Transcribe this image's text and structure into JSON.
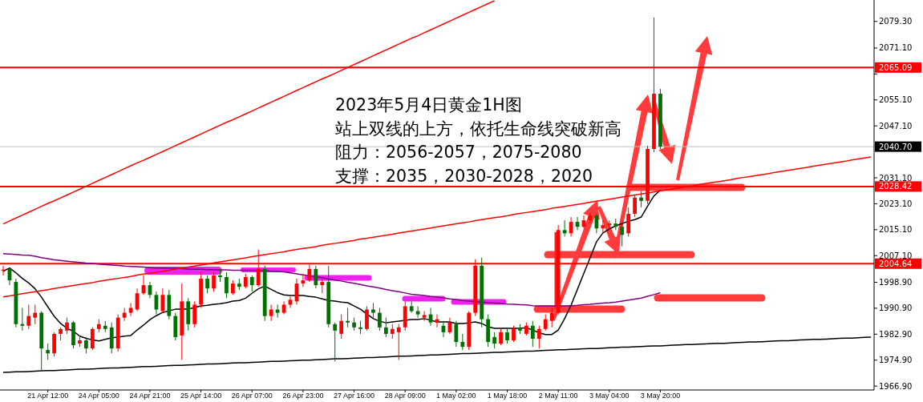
{
  "chart_data": {
    "type": "candlestick",
    "annotations": [
      "2023年5月4日黄金1H图",
      "站上双线的上方，依托生命线突破新高",
      "阻力：2056-2057，2075-2080",
      "支撑：2035，2030-2028，2020"
    ],
    "categories": [
      null,
      null,
      null,
      null,
      null,
      null,
      null,
      "21 Apr 12:00",
      null,
      null,
      null,
      null,
      null,
      null,
      null,
      "24 Apr 05:00",
      null,
      null,
      null,
      null,
      null,
      null,
      null,
      "24 Apr 21:00",
      null,
      null,
      null,
      null,
      null,
      null,
      null,
      "25 Apr 14:00",
      null,
      null,
      null,
      null,
      null,
      null,
      null,
      "26 Apr 07:00",
      null,
      null,
      null,
      null,
      null,
      null,
      null,
      "26 Apr 23:00",
      null,
      null,
      null,
      null,
      null,
      null,
      null,
      "27 Apr 16:00",
      null,
      null,
      null,
      null,
      null,
      null,
      null,
      "28 Apr 09:00",
      null,
      null,
      null,
      null,
      null,
      null,
      null,
      "1 May 02:00",
      null,
      null,
      null,
      null,
      null,
      null,
      null,
      "1 May 18:00",
      null,
      null,
      null,
      null,
      null,
      null,
      null,
      "2 May 11:00",
      null,
      null,
      null,
      null,
      null,
      null,
      null,
      "3 May 04:00",
      null,
      null,
      null,
      null,
      null,
      null,
      null,
      "3 May 20:00",
      null,
      null,
      null,
      null,
      null,
      null,
      null,
      null,
      null,
      null,
      null,
      null,
      null,
      null,
      null,
      null,
      null,
      null,
      null,
      null,
      null,
      null,
      null,
      null,
      null,
      null,
      null,
      null,
      null,
      null,
      null,
      null,
      null
    ],
    "ohlc": [
      [
        2002.5,
        2004.0,
        2001.0,
        2002.8
      ],
      [
        2003.0,
        2003.5,
        1998.0,
        1999.5
      ],
      [
        1999.0,
        2000.0,
        1985.0,
        1986.0
      ],
      [
        1986.0,
        1991.0,
        1984.0,
        1985.5
      ],
      [
        1985.5,
        1992.0,
        1984.5,
        1988.5
      ],
      [
        1988.0,
        1992.0,
        1986.0,
        1989.5
      ],
      [
        1989.5,
        1990.0,
        1971.5,
        1978.5
      ],
      [
        1978.0,
        1980.0,
        1975.0,
        1977.0
      ],
      [
        1977.0,
        1983.5,
        1976.0,
        1983.0
      ],
      [
        1983.0,
        1985.0,
        1981.0,
        1984.5
      ],
      [
        1984.0,
        1988.0,
        1983.0,
        1986.5
      ],
      [
        1986.5,
        1987.0,
        1978.5,
        1979.5
      ],
      [
        1980.0,
        1982.0,
        1979.0,
        1981.0
      ],
      [
        1981.0,
        1982.0,
        1977.0,
        1978.5
      ],
      [
        1978.5,
        1985.0,
        1978.0,
        1984.5
      ],
      [
        1984.5,
        1987.5,
        1983.5,
        1986.0
      ],
      [
        1985.5,
        1987.0,
        1983.5,
        1984.5
      ],
      [
        1985.0,
        1986.5,
        1977.0,
        1978.5
      ],
      [
        1978.5,
        1989.0,
        1977.5,
        1988.0
      ],
      [
        1988.0,
        1991.0,
        1987.0,
        1989.5
      ],
      [
        1989.5,
        1992.5,
        1988.5,
        1991.0
      ],
      [
        1990.5,
        1997.0,
        1990.0,
        1995.5
      ],
      [
        1995.5,
        2001.0,
        1995.0,
        1998.0
      ],
      [
        1998.0,
        1999.0,
        1994.0,
        1995.0
      ],
      [
        1995.0,
        1996.0,
        1989.0,
        1990.5
      ],
      [
        1990.0,
        1997.0,
        1989.5,
        1995.0
      ],
      [
        1995.0,
        1996.5,
        1987.5,
        1988.5
      ],
      [
        1988.5,
        1989.5,
        1981.0,
        1982.0
      ],
      [
        1982.5,
        1998.5,
        1975.0,
        1993.0
      ],
      [
        1993.0,
        1994.0,
        1984.0,
        1986.0
      ],
      [
        1986.0,
        1993.0,
        1985.0,
        1992.0
      ],
      [
        1992.0,
        2002.0,
        1991.0,
        2000.0
      ],
      [
        2000.0,
        2001.0,
        1995.5,
        1997.0
      ],
      [
        1997.0,
        2002.0,
        1996.0,
        2001.0
      ],
      [
        2001.0,
        2003.0,
        1999.0,
        2000.5
      ],
      [
        2000.5,
        2002.0,
        1994.0,
        1995.5
      ],
      [
        1995.5,
        1999.5,
        1995.0,
        1998.5
      ],
      [
        1998.5,
        2000.0,
        1996.5,
        1997.5
      ],
      [
        1997.5,
        2001.5,
        1997.0,
        2000.5
      ],
      [
        2000.5,
        2001.0,
        1996.0,
        1998.0
      ],
      [
        1998.0,
        2009.0,
        1997.5,
        2003.0
      ],
      [
        2003.0,
        2004.0,
        1987.0,
        1988.5
      ],
      [
        1988.5,
        1992.0,
        1987.0,
        1990.5
      ],
      [
        1990.5,
        1992.0,
        1988.0,
        1989.5
      ],
      [
        1989.5,
        1993.0,
        1989.0,
        1992.0
      ],
      [
        1992.0,
        1994.5,
        1991.0,
        1993.5
      ],
      [
        1993.0,
        2000.0,
        1992.0,
        1998.5
      ],
      [
        1998.5,
        2001.5,
        1997.5,
        1999.5
      ],
      [
        1999.5,
        2004.5,
        1999.0,
        2003.0
      ],
      [
        2003.0,
        2004.0,
        1997.0,
        1998.0
      ],
      [
        1998.0,
        2000.0,
        1995.5,
        1999.0
      ],
      [
        1999.0,
        2004.0,
        1985.0,
        1986.0
      ],
      [
        1986.0,
        1986.5,
        1974.5,
        1984.0
      ],
      [
        1983.0,
        1989.0,
        1981.5,
        1987.0
      ],
      [
        1987.0,
        1991.0,
        1985.0,
        1986.5
      ],
      [
        1986.5,
        1988.0,
        1984.0,
        1985.0
      ],
      [
        1985.0,
        1987.0,
        1983.0,
        1984.5
      ],
      [
        1984.5,
        1991.5,
        1984.0,
        1990.5
      ],
      [
        1990.5,
        1992.5,
        1988.0,
        1989.5
      ],
      [
        1989.5,
        1991.0,
        1984.0,
        1985.0
      ],
      [
        1985.0,
        1988.0,
        1982.0,
        1983.0
      ],
      [
        1983.0,
        1986.0,
        1981.5,
        1984.5
      ],
      [
        1983.5,
        1986.0,
        1975.0,
        1985.0
      ],
      [
        1985.0,
        1993.0,
        1984.0,
        1991.5
      ],
      [
        1991.5,
        1993.0,
        1989.5,
        1990.0
      ],
      [
        1990.0,
        1991.5,
        1988.0,
        1989.0
      ],
      [
        1988.0,
        1990.0,
        1987.0,
        1988.8
      ],
      [
        1989.0,
        1991.0,
        1985.5,
        1986.5
      ],
      [
        1986.5,
        1989.0,
        1985.0,
        1987.5
      ],
      [
        1985.5,
        1987.0,
        1982.0,
        1983.5
      ],
      [
        1983.5,
        1988.0,
        1983.0,
        1986.5
      ],
      [
        1986.0,
        1987.0,
        1979.0,
        1980.5
      ],
      [
        1980.5,
        1983.0,
        1978.0,
        1979.0
      ],
      [
        1979.0,
        1990.0,
        1978.0,
        1989.5
      ],
      [
        1989.5,
        2006.0,
        1988.5,
        2004.0
      ],
      [
        2004.0,
        2006.5,
        1985.0,
        1987.5
      ],
      [
        1987.5,
        1989.0,
        1979.0,
        1980.5
      ],
      [
        1982.0,
        1983.5,
        1978.5,
        1980.0
      ],
      [
        1980.0,
        1984.5,
        1979.5,
        1983.5
      ],
      [
        1983.5,
        1984.5,
        1980.0,
        1981.0
      ],
      [
        1981.0,
        1985.5,
        1980.5,
        1984.5
      ],
      [
        1984.5,
        1986.0,
        1983.0,
        1984.0
      ],
      [
        1983.0,
        1986.5,
        1982.5,
        1985.5
      ],
      [
        1985.5,
        1987.0,
        1979.0,
        1981.5
      ],
      [
        1981.5,
        1985.5,
        1978.5,
        1984.5
      ],
      [
        1984.5,
        1989.0,
        1984.0,
        1987.5
      ],
      [
        1987.0,
        1991.0,
        1985.0,
        1989.5
      ],
      [
        1989.5,
        2016.5,
        1989.0,
        2015.0
      ],
      [
        2015.0,
        2018.0,
        2013.0,
        2014.0
      ],
      [
        2014.0,
        2019.0,
        2013.0,
        2017.5
      ],
      [
        2017.5,
        2019.0,
        2015.0,
        2016.0
      ],
      [
        2016.0,
        2019.5,
        2015.5,
        2018.0
      ],
      [
        2018.0,
        2020.5,
        2017.0,
        2019.5
      ],
      [
        2019.5,
        2020.0,
        2014.0,
        2015.5
      ],
      [
        2015.5,
        2018.0,
        2014.0,
        2016.5
      ],
      [
        2016.5,
        2018.0,
        2015.0,
        2017.0
      ],
      [
        2017.0,
        2018.5,
        2015.0,
        2016.0
      ],
      [
        2016.0,
        2017.0,
        2010.0,
        2013.5
      ],
      [
        2014.0,
        2022.0,
        2013.0,
        2020.0
      ],
      [
        2020.0,
        2026.0,
        2019.0,
        2025.0
      ],
      [
        2025.0,
        2027.0,
        2022.0,
        2024.0
      ],
      [
        2024.0,
        2041.0,
        2023.0,
        2040.0
      ],
      [
        2040.0,
        2080.5,
        2039.0,
        2057.0
      ],
      [
        2057.0,
        2058.5,
        2040.0,
        2040.7
      ],
      null,
      null,
      null,
      null,
      null,
      null,
      null,
      null,
      null,
      null,
      null,
      null,
      null,
      null,
      null,
      null,
      null,
      null,
      null,
      null,
      null,
      null,
      null,
      null,
      null,
      null,
      null,
      null,
      null,
      null,
      null,
      null,
      null
    ],
    "colors": [
      "#ff0000",
      "#007000",
      "#007000",
      "#007000",
      "#ff0000",
      "#ff0000",
      "#007000",
      "#007000",
      "#ff0000",
      "#ff0000",
      "#ff0000",
      "#007000",
      "#ff0000",
      "#007000",
      "#ff0000",
      "#ff0000",
      "#007000",
      "#007000",
      "#ff0000",
      "#ff0000",
      "#ff0000",
      "#ff0000",
      "#ff0000",
      "#007000",
      "#007000",
      "#ff0000",
      "#007000",
      "#007000",
      "#ff0000",
      "#007000",
      "#ff0000",
      "#ff0000",
      "#007000",
      "#ff0000",
      "#007000",
      "#007000",
      "#ff0000",
      "#007000",
      "#ff0000",
      "#007000",
      "#ff0000",
      "#007000",
      "#ff0000",
      "#007000",
      "#ff0000",
      "#ff0000",
      "#ff0000",
      "#ff0000",
      "#ff0000",
      "#007000",
      "#ff0000",
      "#007000",
      "#007000",
      "#ff0000",
      "#007000",
      "#007000",
      "#007000",
      "#ff0000",
      "#007000",
      "#007000",
      "#007000",
      "#ff0000",
      "#ff0000",
      "#ff0000",
      "#007000",
      "#007000",
      "#ff0000",
      "#007000",
      "#ff0000",
      "#007000",
      "#ff0000",
      "#007000",
      "#007000",
      "#ff0000",
      "#ff0000",
      "#007000",
      "#007000",
      "#007000",
      "#ff0000",
      "#007000",
      "#ff0000",
      "#007000",
      "#ff0000",
      "#007000",
      "#ff0000",
      "#ff0000",
      "#ff0000",
      "#ff0000",
      "#007000",
      "#ff0000",
      "#007000",
      "#ff0000",
      "#ff0000",
      "#007000",
      "#ff0000",
      "#ff0000",
      "#007000",
      "#007000",
      "#ff0000",
      "#ff0000",
      "#007000",
      "#ff0000",
      "#ff0000",
      "#007000",
      null,
      null,
      null,
      null,
      null,
      null,
      null,
      null,
      null,
      null,
      null,
      null,
      null,
      null,
      null,
      null,
      null,
      null,
      null,
      null,
      null,
      null,
      null,
      null,
      null,
      null,
      null,
      null,
      null,
      null,
      null,
      null,
      null
    ],
    "series": [
      {
        "type": "line",
        "color": "#800080",
        "values": [
          2007.7,
          2007.6,
          2007.5,
          2007.3,
          2007.2,
          2006.9,
          2006.5,
          2006.2,
          2005.8,
          2005.6,
          2005.4,
          2005.2,
          2005.0,
          2004.8,
          2004.7,
          2004.5,
          2004.3,
          2004.2,
          2004.1,
          2003.9,
          2003.8,
          2003.7,
          2003.6,
          2003.4,
          2003.3,
          2003.3,
          2003.2,
          2003.2,
          2003.1,
          2003.0,
          2002.9,
          2002.9,
          2002.8,
          2002.8,
          2002.7,
          2002.7,
          2002.6,
          2002.6,
          2002.6,
          2002.6,
          2002.6,
          2002.5,
          2002.3,
          2002.2,
          2002.1,
          2001.8,
          2001.5,
          2001.2,
          2000.9,
          2000.6,
          2000.3,
          1999.9,
          1999.6,
          1999.3,
          1998.9,
          1998.6,
          1998.2,
          1997.8,
          1997.5,
          1997.1,
          1996.7,
          1996.3,
          1996.0,
          1995.6,
          1995.2,
          1995.0,
          1994.8,
          1994.5,
          1994.3,
          1994.1,
          1993.8,
          1993.6,
          1993.3,
          1993.1,
          1992.9,
          1992.8,
          1992.6,
          1992.5,
          1992.4,
          1992.2,
          1992.1,
          1992.0,
          1991.9,
          1991.7,
          1991.6,
          1991.6,
          1991.6,
          1991.6,
          1991.6,
          1991.7,
          1991.8,
          1992.0,
          1992.1,
          1992.3,
          1992.5,
          1992.6,
          1992.8,
          1993.1,
          1993.4,
          1993.7,
          1994.0,
          1994.6,
          1995.1,
          1995.7,
          null,
          null,
          null,
          null,
          null,
          null,
          null,
          null,
          null,
          null,
          null,
          null,
          null,
          null,
          null,
          null,
          null,
          null,
          null,
          null,
          null,
          null,
          null,
          null,
          null,
          null,
          null,
          null,
          null,
          null,
          null,
          null,
          null
        ]
      },
      {
        "type": "line",
        "color": "#000000",
        "values": [
          2002.3,
          2003.3,
          2001.8,
          2000.1,
          1998.7,
          1996.9,
          1994.3,
          1991.3,
          1988.4,
          1986.2,
          1984.7,
          1983.8,
          1982.3,
          1981.6,
          1981.1,
          1980.8,
          1981.3,
          1981.8,
          1982.0,
          1982.3,
          1982.5,
          1984.2,
          1985.7,
          1987.4,
          1988.6,
          1989.6,
          1990.1,
          1990.6,
          1990.6,
          1990.6,
          1991.1,
          1991.6,
          1991.8,
          1992.1,
          1992.3,
          1992.6,
          1993.1,
          1993.3,
          1994.0,
          1995.5,
          1996.9,
          1997.7,
          1996.7,
          1995.7,
          1995.0,
          1994.8,
          1994.8,
          1994.8,
          1994.5,
          1994.3,
          1993.8,
          1993.3,
          1993.1,
          1992.8,
          1992.6,
          1991.6,
          1990.6,
          1989.1,
          1987.7,
          1986.9,
          1986.4,
          1986.7,
          1986.9,
          1987.2,
          1987.4,
          1987.4,
          1987.7,
          1987.2,
          1986.7,
          1986.7,
          1986.7,
          1986.2,
          1986.2,
          1986.4,
          1986.7,
          1986.2,
          1985.2,
          1984.7,
          1984.7,
          1984.7,
          1984.7,
          1984.7,
          1984.9,
          1984.2,
          1983.3,
          1982.8,
          1982.8,
          1984.2,
          1987.7,
          1991.8,
          1996.7,
          2001.6,
          2006.5,
          2011.4,
          2014.1,
          2015.3,
          2016.3,
          2017.0,
          2017.7,
          2018.2,
          2019.0,
          2022.4,
          2025.5,
          2027.3,
          null,
          null,
          null,
          null,
          null,
          null,
          null,
          null,
          null,
          null,
          null,
          null,
          null,
          null,
          null,
          null,
          null,
          null,
          null,
          null,
          null,
          null,
          null,
          null,
          null,
          null,
          null,
          null,
          null,
          null,
          null,
          null,
          null
        ]
      },
      {
        "type": "line",
        "color": "#ff0000",
        "values": [
          2016.9,
          2017.8,
          2018.7,
          2019.6,
          2020.5,
          2021.4,
          2022.3,
          2023.2,
          2024.0,
          2024.9,
          2025.8,
          2026.7,
          2027.6,
          2028.5,
          2029.4,
          2030.3,
          2031.2,
          2032.1,
          2033.0,
          2033.9,
          2034.8,
          2035.7,
          2036.5,
          2037.4,
          2038.3,
          2039.2,
          2040.1,
          2041.0,
          2041.9,
          2042.8,
          2043.7,
          2044.6,
          2045.5,
          2046.4,
          2047.3,
          2048.2,
          2049.0,
          2049.9,
          2050.8,
          2051.7,
          2052.6,
          2053.5,
          2054.4,
          2055.3,
          2056.2,
          2057.1,
          2058.0,
          2058.9,
          2059.8,
          2060.7,
          2061.6,
          2062.4,
          2063.3,
          2064.2,
          2065.1,
          2066.0,
          2066.9,
          2067.8,
          2068.7,
          2069.6,
          2070.5,
          2071.4,
          2072.3,
          2073.2,
          2074.1,
          2074.9,
          2075.8,
          2076.7,
          2077.6,
          2078.5,
          2079.4,
          2080.3,
          2081.2,
          2082.1,
          2083.0,
          2083.9,
          2084.8,
          2085.7,
          null,
          null,
          null,
          null,
          null,
          null,
          null,
          null,
          null,
          null,
          null,
          null,
          null,
          null,
          null,
          null,
          null,
          null,
          null,
          null,
          null,
          null,
          null,
          null,
          null,
          null,
          null,
          null,
          null,
          null,
          null,
          null,
          null,
          null,
          null,
          null,
          null,
          null,
          null,
          null,
          null,
          null,
          null,
          null,
          null,
          null,
          null,
          null,
          null,
          null,
          null,
          null,
          null,
          null,
          null,
          null,
          null,
          null,
          null
        ]
      },
      {
        "type": "line",
        "color": "#ff0000",
        "values": [
          1994.4,
          1994.7,
          1995.0,
          1995.4,
          1995.7,
          1996.0,
          1996.3,
          1996.6,
          1997.0,
          1997.3,
          1997.6,
          1997.9,
          1998.2,
          1998.5,
          1998.8,
          1999.2,
          1999.5,
          1999.8,
          2000.1,
          2000.4,
          2000.7,
          2001.1,
          2001.4,
          2001.7,
          2002.0,
          2002.3,
          2002.6,
          2003.0,
          2003.3,
          2003.6,
          2003.9,
          2004.2,
          2004.5,
          2004.9,
          2005.2,
          2005.5,
          2005.8,
          2006.1,
          2006.4,
          2006.8,
          2007.1,
          2007.4,
          2007.7,
          2008.0,
          2008.3,
          2008.7,
          2009.0,
          2009.3,
          2009.6,
          2009.9,
          2010.3,
          2010.6,
          2010.9,
          2011.2,
          2011.5,
          2011.8,
          2012.2,
          2012.5,
          2012.8,
          2013.1,
          2013.4,
          2013.7,
          2014.1,
          2014.4,
          2014.7,
          2015.0,
          2015.3,
          2015.6,
          2016.0,
          2016.3,
          2016.6,
          2016.9,
          2017.2,
          2017.5,
          2017.9,
          2018.2,
          2018.5,
          2018.8,
          2019.1,
          2019.4,
          2019.8,
          2020.1,
          2020.4,
          2020.7,
          2021.0,
          2021.3,
          2021.7,
          2022.0,
          2022.3,
          2022.6,
          2022.9,
          2023.2,
          2023.6,
          2023.9,
          2024.2,
          2024.5,
          2024.8,
          2025.2,
          2025.5,
          2025.8,
          2026.1,
          2026.4,
          2026.7,
          2027.1,
          2027.4,
          2027.7,
          2028.0,
          2028.3,
          2028.6,
          2029.0,
          2029.3,
          2029.6,
          2029.9,
          2030.2,
          2030.5,
          2030.9,
          2031.2,
          2031.5,
          2031.8,
          2032.1,
          2032.4,
          2032.8,
          2033.1,
          2033.4,
          2033.7,
          2034.0,
          2034.3,
          2034.7,
          2035.0,
          2035.3,
          2035.6,
          2035.9,
          2036.2,
          2036.6,
          2036.9,
          2037.2,
          2037.5
        ]
      },
      {
        "type": "line",
        "color": "#000000",
        "values": [
          1971.1,
          1971.2,
          1971.3,
          1971.3,
          1971.4,
          1971.5,
          1971.6,
          1971.7,
          1971.7,
          1971.8,
          1971.9,
          1972.0,
          1972.1,
          1972.1,
          1972.2,
          1972.3,
          1972.4,
          1972.5,
          1972.5,
          1972.6,
          1972.7,
          1972.8,
          1972.9,
          1972.9,
          1973.0,
          1973.1,
          1973.2,
          1973.3,
          1973.3,
          1973.4,
          1973.5,
          1973.6,
          1973.7,
          1973.7,
          1973.8,
          1973.9,
          1974.0,
          1974.1,
          1974.1,
          1974.2,
          1974.3,
          1974.4,
          1974.5,
          1974.5,
          1974.6,
          1974.7,
          1974.8,
          1974.9,
          1974.9,
          1975.0,
          1975.1,
          1975.2,
          1975.3,
          1975.3,
          1975.4,
          1975.5,
          1975.6,
          1975.7,
          1975.7,
          1975.8,
          1975.9,
          1976.0,
          1976.1,
          1976.1,
          1976.2,
          1976.3,
          1976.4,
          1976.5,
          1976.5,
          1976.6,
          1976.7,
          1976.8,
          1976.9,
          1976.9,
          1977.0,
          1977.1,
          1977.2,
          1977.3,
          1977.3,
          1977.4,
          1977.5,
          1977.6,
          1977.7,
          1977.7,
          1977.8,
          1977.9,
          1978.0,
          1978.1,
          1978.1,
          1978.2,
          1978.3,
          1978.4,
          1978.5,
          1978.5,
          1978.6,
          1978.7,
          1978.8,
          1978.9,
          1978.9,
          1979.0,
          1979.1,
          1979.2,
          1979.3,
          1979.3,
          1979.4,
          1979.5,
          1979.6,
          1979.7,
          1979.7,
          1979.8,
          1979.9,
          1980.0,
          1980.1,
          1980.1,
          1980.2,
          1980.3,
          1980.4,
          1980.5,
          1980.5,
          1980.6,
          1980.7,
          1980.8,
          1980.9,
          1980.9,
          1981.0,
          1981.1,
          1981.2,
          1981.3,
          1981.3,
          1981.4,
          1981.5,
          1981.6,
          1981.7,
          1981.7,
          1981.8,
          1981.9,
          1982.0
        ]
      }
    ],
    "ref_lines": [
      {
        "axis": "y",
        "value": 2065.09,
        "label": "2065.09",
        "color": "#ff0000"
      },
      {
        "axis": "y",
        "value": 2028.42,
        "label": "2028.42",
        "color": "#ff0000"
      },
      {
        "axis": "y",
        "value": 2004.64,
        "label": "2004.64",
        "color": "#ff0000"
      },
      {
        "axis": "y",
        "value": 2040.7,
        "label": "2040.70",
        "color": "#c0c0c0"
      }
    ],
    "ylim": [
      1965.7,
      2085.9
    ],
    "yticks": [
      {
        "value": 1966.9,
        "label": "1966.90"
      },
      {
        "value": 1974.9,
        "label": "1974.90"
      },
      {
        "value": 1982.9,
        "label": "1982.90"
      },
      {
        "value": 1990.9,
        "label": "1990.90"
      },
      {
        "value": 1998.9,
        "label": "1998.90"
      },
      {
        "value": 2007.1,
        "label": "2007.10"
      },
      {
        "value": 2015.1,
        "label": "2015.10"
      },
      {
        "value": 2023.1,
        "label": "2023.10"
      },
      {
        "value": 2031.1,
        "label": "2031.10"
      },
      {
        "value": 2047.1,
        "label": "2047.10"
      },
      {
        "value": 2055.1,
        "label": "2055.10"
      },
      {
        "value": 2063.1,
        "label": null
      },
      {
        "value": 2071.1,
        "label": "2071.10"
      },
      {
        "value": 2079.3,
        "label": "2079.30"
      }
    ],
    "grid": false
  }
}
